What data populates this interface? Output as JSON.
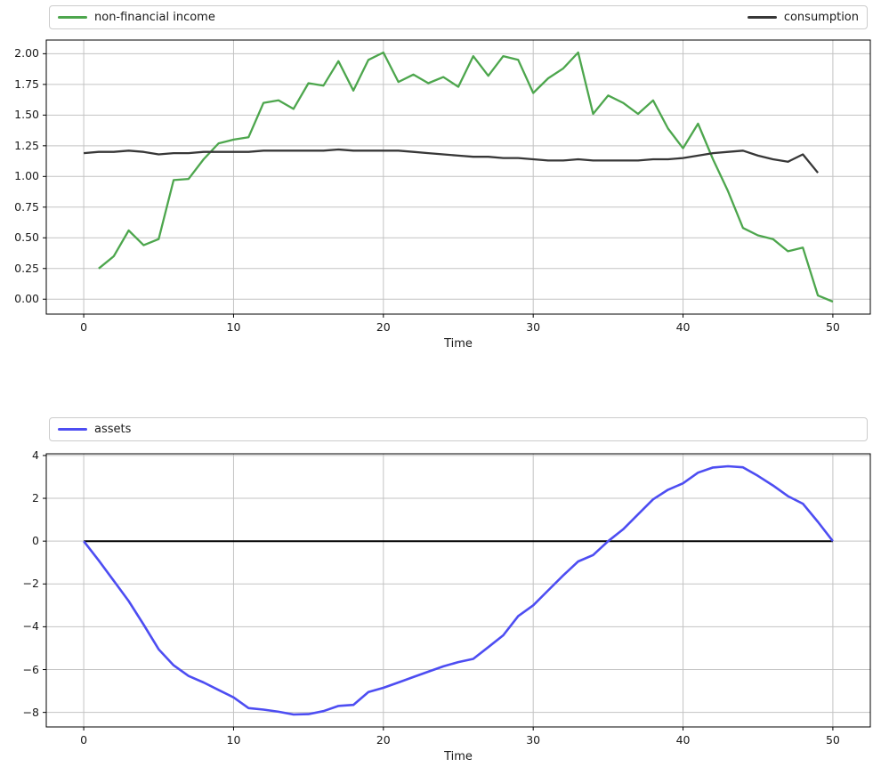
{
  "figure": {
    "background": "#ffffff",
    "text_color": "#1a1a1a",
    "grid_color": "#c3c3c3",
    "frame_color": "#000000",
    "tick_color": "#000000",
    "legend_border_color": "#cccccc",
    "accent_green": "#4da64d",
    "accent_dark": "#373737",
    "accent_blue": "#4d4df2"
  },
  "chart_data": [
    {
      "type": "line",
      "title": "",
      "xlabel": "Time",
      "ylabel": "",
      "grid": true,
      "xlim": [
        -2.5,
        52.5
      ],
      "ylim": [
        -0.1215,
        2.1115
      ],
      "x_tick_values": [
        0,
        10,
        20,
        30,
        40,
        50
      ],
      "x_tick_labels": [
        "0",
        "10",
        "20",
        "30",
        "40",
        "50"
      ],
      "y_tick_values": [
        0,
        0.25,
        0.5,
        0.75,
        1.0,
        1.25,
        1.5,
        1.75,
        2.0
      ],
      "y_tick_labels": [
        "0.00",
        "0.25",
        "0.50",
        "0.75",
        "1.00",
        "1.25",
        "1.50",
        "1.75",
        "2.00"
      ],
      "legend": {
        "location": "top",
        "mode": "expand"
      },
      "series": [
        {
          "name": "non-financial income",
          "color": "#4da64d",
          "line_width": 2.3,
          "in_legend": true,
          "x": [
            1,
            2,
            3,
            4,
            5,
            6,
            7,
            8,
            9,
            10,
            11,
            12,
            13,
            14,
            15,
            16,
            17,
            18,
            19,
            20,
            21,
            22,
            23,
            24,
            25,
            26,
            27,
            28,
            29,
            30,
            31,
            32,
            33,
            34,
            35,
            36,
            37,
            38,
            39,
            40,
            41,
            42,
            43,
            44,
            45,
            46,
            47,
            48,
            49,
            50
          ],
          "values": [
            0.25,
            0.35,
            0.56,
            0.44,
            0.49,
            0.97,
            0.98,
            1.14,
            1.27,
            1.3,
            1.32,
            1.6,
            1.62,
            1.55,
            1.76,
            1.74,
            1.94,
            1.7,
            1.95,
            2.01,
            1.77,
            1.83,
            1.76,
            1.81,
            1.73,
            1.98,
            1.82,
            1.98,
            1.95,
            1.68,
            1.8,
            1.88,
            2.01,
            1.51,
            1.66,
            1.6,
            1.51,
            1.62,
            1.39,
            1.23,
            1.43,
            1.14,
            0.88,
            0.58,
            0.52,
            0.49,
            0.39,
            0.42,
            0.03,
            -0.02
          ]
        },
        {
          "name": "consumption",
          "color": "#373737",
          "line_width": 2.3,
          "in_legend": true,
          "x": [
            0,
            1,
            2,
            3,
            4,
            5,
            6,
            7,
            8,
            9,
            10,
            11,
            12,
            13,
            14,
            15,
            16,
            17,
            18,
            19,
            20,
            21,
            22,
            23,
            24,
            25,
            26,
            27,
            28,
            29,
            30,
            31,
            32,
            33,
            34,
            35,
            36,
            37,
            38,
            39,
            40,
            41,
            42,
            43,
            44,
            45,
            46,
            47,
            48,
            49
          ],
          "values": [
            1.19,
            1.2,
            1.2,
            1.21,
            1.2,
            1.18,
            1.19,
            1.19,
            1.2,
            1.2,
            1.2,
            1.2,
            1.21,
            1.21,
            1.21,
            1.21,
            1.21,
            1.22,
            1.21,
            1.21,
            1.21,
            1.21,
            1.2,
            1.19,
            1.18,
            1.17,
            1.16,
            1.16,
            1.15,
            1.15,
            1.14,
            1.13,
            1.13,
            1.14,
            1.13,
            1.13,
            1.13,
            1.13,
            1.14,
            1.14,
            1.15,
            1.17,
            1.19,
            1.2,
            1.21,
            1.17,
            1.14,
            1.12,
            1.18,
            1.03
          ]
        }
      ]
    },
    {
      "type": "line",
      "title": "",
      "xlabel": "Time",
      "ylabel": "",
      "grid": true,
      "xlim": [
        -2.5,
        52.5
      ],
      "ylim": [
        -8.68,
        4.08
      ],
      "x_tick_values": [
        0,
        10,
        20,
        30,
        40,
        50
      ],
      "x_tick_labels": [
        "0",
        "10",
        "20",
        "30",
        "40",
        "50"
      ],
      "y_tick_values": [
        4,
        2,
        0,
        -2,
        -4,
        -6,
        -8
      ],
      "y_tick_labels": [
        "4",
        "2",
        "0",
        "−2",
        "−4",
        "−6",
        "−8"
      ],
      "legend": {
        "location": "top",
        "mode": "expand"
      },
      "series": [
        {
          "name": "zero-line",
          "color": "#000000",
          "line_width": 2.0,
          "in_legend": false,
          "x": [
            0,
            50
          ],
          "values": [
            0,
            0
          ]
        },
        {
          "name": "assets",
          "color": "#4d4df2",
          "line_width": 2.6,
          "in_legend": true,
          "x": [
            0,
            1,
            2,
            3,
            4,
            5,
            6,
            7,
            8,
            9,
            10,
            11,
            12,
            13,
            14,
            15,
            16,
            17,
            18,
            19,
            20,
            21,
            22,
            23,
            24,
            25,
            26,
            27,
            28,
            29,
            30,
            31,
            32,
            33,
            34,
            35,
            36,
            37,
            38,
            39,
            40,
            41,
            42,
            43,
            44,
            45,
            46,
            47,
            48,
            49,
            50
          ],
          "values": [
            0.0,
            -0.9,
            -1.85,
            -2.8,
            -3.9,
            -5.05,
            -5.8,
            -6.3,
            -6.6,
            -6.95,
            -7.3,
            -7.8,
            -7.87,
            -7.97,
            -8.1,
            -8.08,
            -7.94,
            -7.7,
            -7.65,
            -7.05,
            -6.85,
            -6.6,
            -6.35,
            -6.1,
            -5.85,
            -5.65,
            -5.5,
            -4.95,
            -4.4,
            -3.5,
            -3.0,
            -2.3,
            -1.6,
            -0.95,
            -0.65,
            0.0,
            0.55,
            1.25,
            1.95,
            2.4,
            2.7,
            3.2,
            3.44,
            3.5,
            3.45,
            3.05,
            2.6,
            2.1,
            1.75,
            0.9,
            0.0
          ]
        }
      ]
    }
  ]
}
